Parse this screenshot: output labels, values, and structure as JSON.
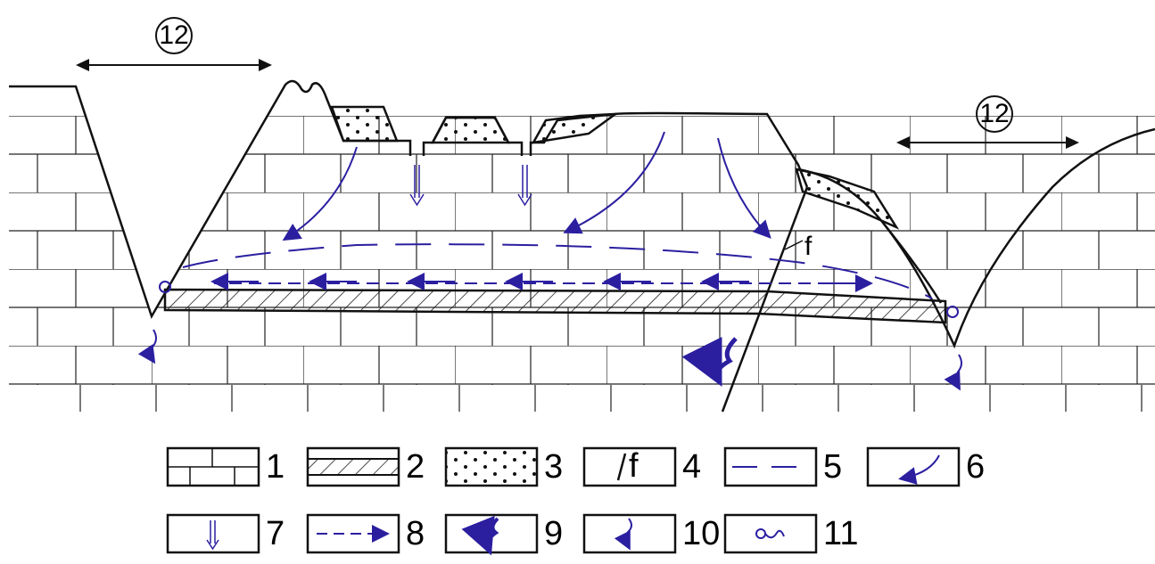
{
  "zones": [
    {
      "label": "12"
    },
    {
      "label": "12"
    }
  ],
  "fault_label": "f",
  "legend": [
    {
      "label": "1"
    },
    {
      "label": "2"
    },
    {
      "label": "3"
    },
    {
      "label": "4",
      "symbol_text": "f"
    },
    {
      "label": "5"
    },
    {
      "label": "6"
    },
    {
      "label": "7"
    },
    {
      "label": "8"
    },
    {
      "label": "9"
    },
    {
      "label": "10"
    },
    {
      "label": "11"
    }
  ]
}
